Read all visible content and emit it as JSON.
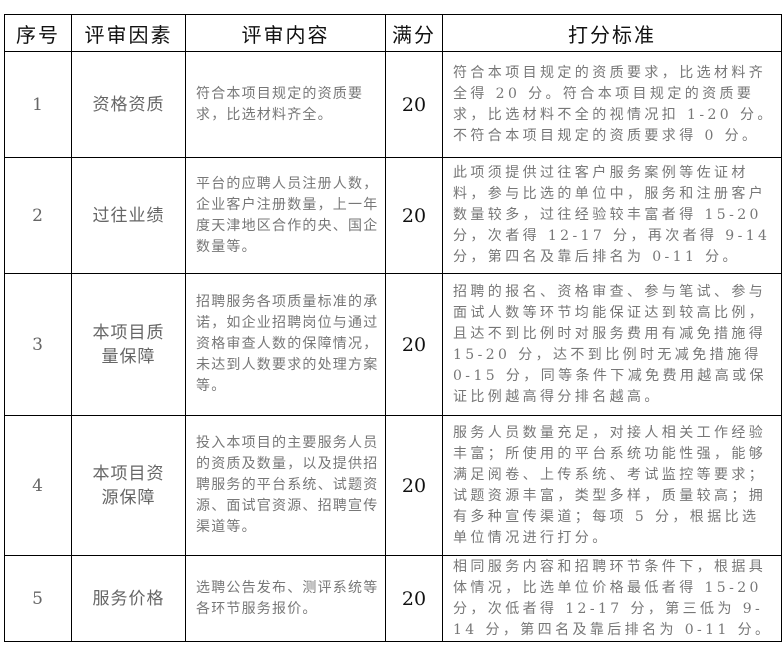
{
  "headers": [
    "序号",
    "评审因素",
    "评审内容",
    "满分",
    "打分标准"
  ],
  "rows": [
    {
      "no": "1",
      "factor": "资格资质",
      "content": "符合本项目规定的资质要求，比选材料齐全。",
      "score": "20",
      "criteria": "符合本项目规定的资质要求，比选材料齐全得 20 分。符合本项目规定的资质要求，比选材料不全的视情况扣 1-20 分。不符合本项目规定的资质要求得 0 分。"
    },
    {
      "no": "2",
      "factor": "过往业绩",
      "content": "平台的应聘人员注册人数，企业客户注册数量，上一年度天津地区合作的央、国企数量等。",
      "score": "20",
      "criteria": "此项须提供过往客户服务案例等佐证材料，参与比选的单位中，服务和注册客户数量较多，过往经验较丰富者得 15-20 分，次者得 12-17 分，再次者得 9-14 分，第四名及靠后排名为 0-11 分。"
    },
    {
      "no": "3",
      "factor": "本项目质量保障",
      "content": "招聘服务各项质量标准的承诺，如企业招聘岗位与通过资格审查人数的保障情况，未达到人数要求的处理方案等。",
      "score": "20",
      "criteria": "招聘的报名、资格审查、参与笔试、参与面试人数等环节均能保证达到较高比例，且达不到比例时对服务费用有减免措施得 15-20 分，达不到比例时无减免措施得 0-15 分，同等条件下减免费用越高或保证比例越高得分排名越高。"
    },
    {
      "no": "4",
      "factor": "本项目资源保障",
      "content": "投入本项目的主要服务人员的资质及数量，以及提供招聘服务的平台系统、试题资源、面试官资源、招聘宣传渠道等。",
      "score": "20",
      "criteria": "服务人员数量充足，对接人相关工作经验丰富；所使用的平台系统功能性强，能够满足阅卷、上传系统、考试监控等要求；试题资源丰富，类型多样，质量较高；拥有多种宣传渠道；每项 5 分，根据比选单位情况进行打分。"
    },
    {
      "no": "5",
      "factor": "服务价格",
      "content": "选聘公告发布、测评系统等各环节服务报价。",
      "score": "20",
      "criteria": "相同服务内容和招聘环节条件下，根据具体情况，比选单位价格最低者得 15-20 分，次低者得 12-17 分，第三低为 9-14 分，第四名及靠后排名为 0-11 分。"
    }
  ]
}
